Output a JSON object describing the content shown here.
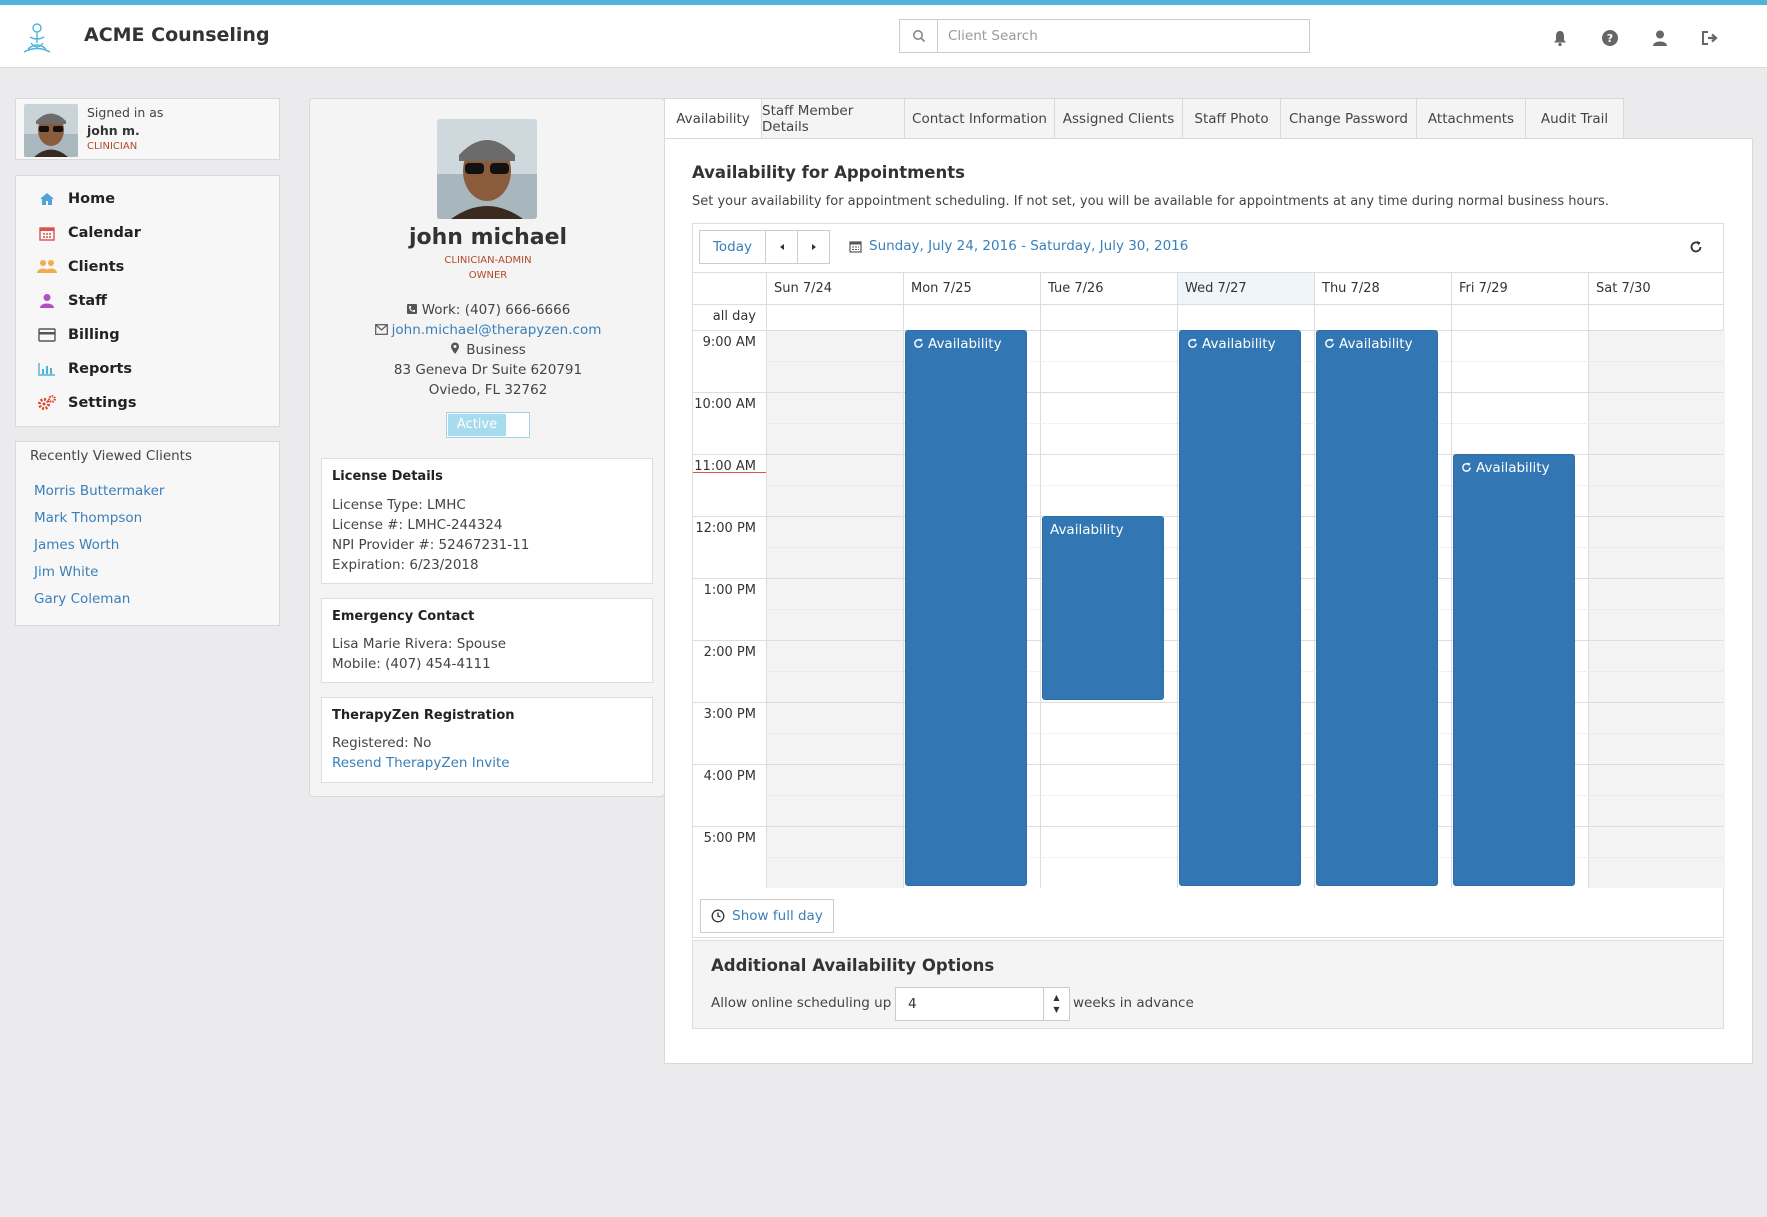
{
  "header": {
    "brand": "ACME Counseling",
    "search_placeholder": "Client Search",
    "icons": [
      "bell-icon",
      "help-icon",
      "user-icon",
      "sign-out-icon"
    ],
    "accent": "#4fb3da"
  },
  "user": {
    "signed_in_label": "Signed in as",
    "name": "john m.",
    "role": "CLINICIAN"
  },
  "nav": {
    "items": [
      {
        "label": "Home",
        "icon": "home-icon",
        "color": "#4fa3d8"
      },
      {
        "label": "Calendar",
        "icon": "calendar-icon",
        "color": "#d9534f"
      },
      {
        "label": "Clients",
        "icon": "users-icon",
        "color": "#f0ad4e"
      },
      {
        "label": "Staff",
        "icon": "staff-icon",
        "color": "#b04fc4"
      },
      {
        "label": "Billing",
        "icon": "credit-card-icon",
        "color": "#555555"
      },
      {
        "label": "Reports",
        "icon": "bar-chart-icon",
        "color": "#4fb3da"
      },
      {
        "label": "Settings",
        "icon": "cogs-icon",
        "color": "#e0442c"
      }
    ]
  },
  "recent": {
    "heading": "Recently Viewed Clients",
    "clients": [
      "Morris Buttermaker",
      "Mark Thompson",
      "James Worth",
      "Jim White",
      "Gary Coleman"
    ]
  },
  "profile": {
    "name": "john michael",
    "role": "CLINICIAN-ADMIN",
    "owner": "OWNER",
    "work_phone": "Work: (407) 666-6666",
    "email": "john.michael@therapyzen.com",
    "address_type": "Business",
    "address_line1": "83 Geneva Dr Suite 620791",
    "address_line2": "Oviedo, FL 32762",
    "status": "Active",
    "license": {
      "title": "License Details",
      "type": "License Type: LMHC",
      "number": "License #: LMHC-244324",
      "npi": "NPI Provider #: 52467231-11",
      "expiration": "Expiration: 6/23/2018"
    },
    "emergency": {
      "title": "Emergency Contact",
      "name": "Lisa Marie Rivera: Spouse",
      "mobile": "Mobile: (407) 454-4111"
    },
    "registration": {
      "title": "TherapyZen Registration",
      "registered": "Registered: No",
      "resend": "Resend TherapyZen Invite"
    }
  },
  "tabs": [
    "Availability",
    "Staff Member Details",
    "Contact Information",
    "Assigned Clients",
    "Staff Photo",
    "Change Password",
    "Attachments",
    "Audit Trail"
  ],
  "availability": {
    "title": "Availability for Appointments",
    "subtitle": "Set your availability for appointment scheduling. If not set, you will be available for appointments at any time during normal business hours.",
    "today_label": "Today",
    "range": "Sunday, July 24, 2016 - Saturday, July 30, 2016",
    "all_day": "all day",
    "days": [
      "Sun 7/24",
      "Mon 7/25",
      "Tue 7/26",
      "Wed 7/27",
      "Thu 7/28",
      "Fri 7/29",
      "Sat 7/30"
    ],
    "times": [
      "9:00 AM",
      "10:00 AM",
      "11:00 AM",
      "12:00 PM",
      "1:00 PM",
      "2:00 PM",
      "3:00 PM",
      "4:00 PM",
      "5:00 PM"
    ],
    "event_label": "Availability",
    "events": [
      {
        "day": 1,
        "start": 9,
        "end": 18,
        "recurring": true
      },
      {
        "day": 2,
        "start": 12,
        "end": 15,
        "recurring": false
      },
      {
        "day": 3,
        "start": 9,
        "end": 18,
        "recurring": true
      },
      {
        "day": 4,
        "start": 9,
        "end": 18,
        "recurring": true
      },
      {
        "day": 5,
        "start": 11,
        "end": 18,
        "recurring": true
      }
    ],
    "show_full_day": "Show full day"
  },
  "additional": {
    "title": "Additional Availability Options",
    "label": "Allow online scheduling up to",
    "weeks": "4",
    "suffix": "weeks in advance"
  }
}
